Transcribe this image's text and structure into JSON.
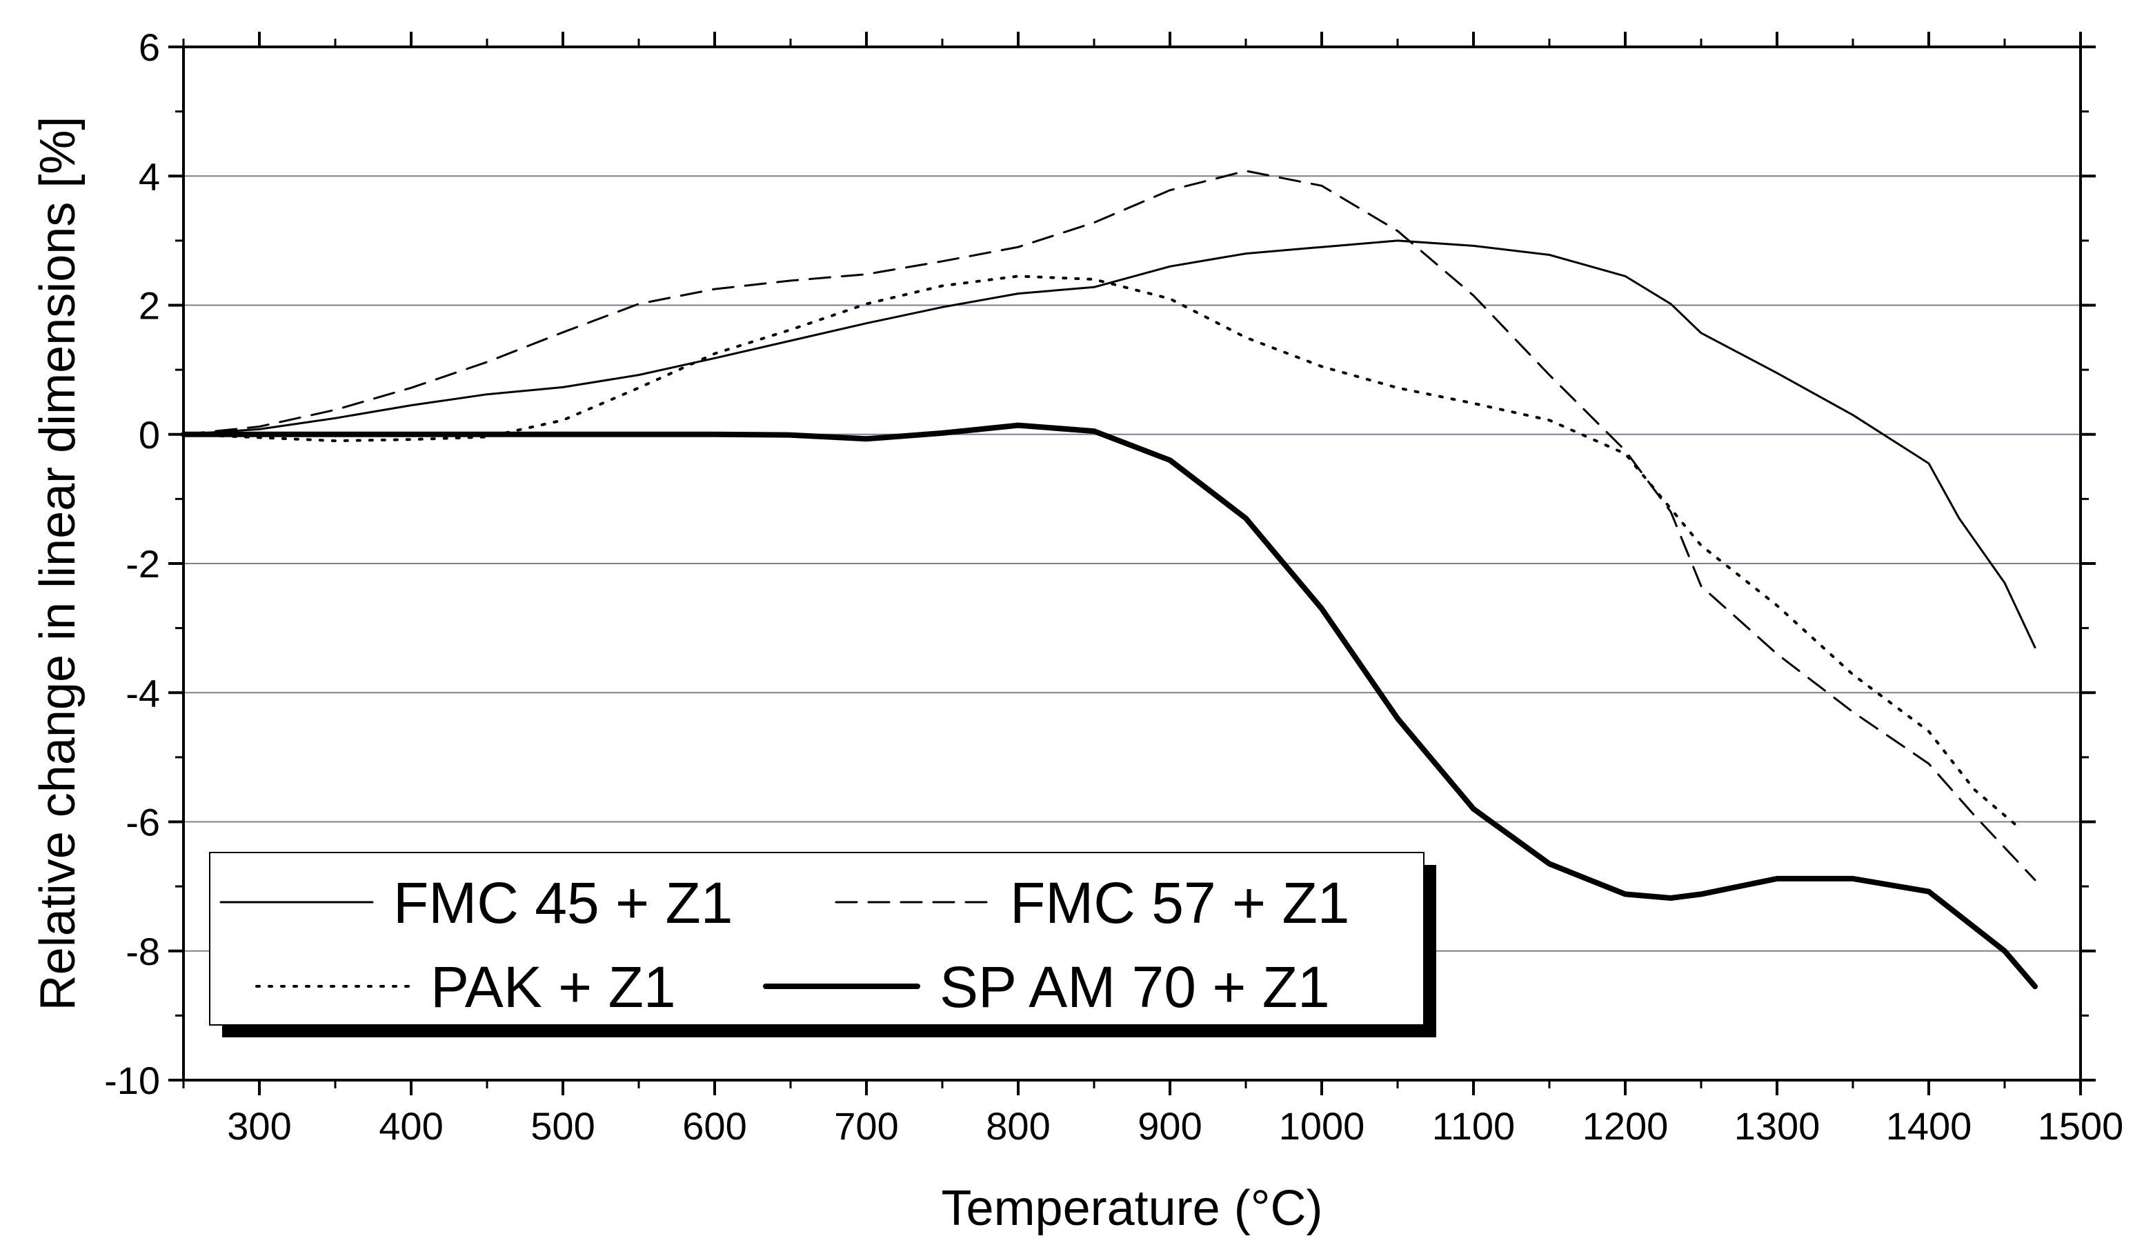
{
  "chart_data": {
    "type": "line",
    "title": "",
    "xlabel": "Temperature (°C)",
    "ylabel": "Relative change in linear dimensions [%]",
    "xlim": [
      250,
      1500
    ],
    "ylim": [
      -10,
      6
    ],
    "xticks": [
      300,
      400,
      500,
      600,
      700,
      800,
      900,
      1000,
      1100,
      1200,
      1300,
      1400,
      1500
    ],
    "yticks": [
      -10,
      -8,
      -6,
      -4,
      -2,
      0,
      2,
      4,
      6
    ],
    "grid": "horizontal",
    "legend_position": "bottom-left",
    "series": [
      {
        "name": "FMC 45 + Z1",
        "style": "thin-solid",
        "x": [
          250,
          300,
          350,
          400,
          450,
          500,
          550,
          600,
          650,
          700,
          750,
          800,
          850,
          900,
          950,
          1000,
          1050,
          1100,
          1150,
          1200,
          1230,
          1250,
          1300,
          1350,
          1400,
          1420,
          1450,
          1470
        ],
        "y": [
          0,
          0.08,
          0.25,
          0.45,
          0.62,
          0.73,
          0.92,
          1.18,
          1.45,
          1.72,
          1.97,
          2.18,
          2.28,
          2.6,
          2.8,
          2.9,
          3.0,
          2.92,
          2.78,
          2.45,
          2.02,
          1.57,
          0.95,
          0.3,
          -0.45,
          -1.3,
          -2.3,
          -3.3
        ]
      },
      {
        "name": "FMC 57 + Z1",
        "style": "dashed",
        "x": [
          250,
          300,
          350,
          400,
          450,
          500,
          550,
          600,
          650,
          700,
          750,
          800,
          850,
          900,
          950,
          1000,
          1050,
          1100,
          1150,
          1200,
          1230,
          1250,
          1300,
          1350,
          1400,
          1430,
          1470
        ],
        "y": [
          0,
          0.12,
          0.38,
          0.72,
          1.12,
          1.58,
          2.02,
          2.25,
          2.38,
          2.48,
          2.68,
          2.9,
          3.28,
          3.78,
          4.08,
          3.85,
          3.15,
          2.15,
          0.92,
          -0.25,
          -1.2,
          -2.35,
          -3.4,
          -4.3,
          -5.1,
          -5.9,
          -6.9
        ]
      },
      {
        "name": "PAK + Z1",
        "style": "dotted",
        "x": [
          250,
          300,
          350,
          400,
          450,
          500,
          550,
          600,
          650,
          700,
          750,
          800,
          850,
          900,
          950,
          1000,
          1050,
          1100,
          1150,
          1200,
          1250,
          1300,
          1350,
          1400,
          1430,
          1460
        ],
        "y": [
          0,
          -0.05,
          -0.1,
          -0.08,
          -0.04,
          0.22,
          0.72,
          1.25,
          1.62,
          2.02,
          2.3,
          2.45,
          2.4,
          2.1,
          1.5,
          1.05,
          0.72,
          0.48,
          0.22,
          -0.3,
          -1.72,
          -2.65,
          -3.72,
          -4.6,
          -5.5,
          -6.1
        ]
      },
      {
        "name": "SP AM 70 + Z1",
        "style": "thick-solid",
        "x": [
          250,
          300,
          400,
          500,
          600,
          650,
          700,
          750,
          800,
          850,
          900,
          950,
          1000,
          1050,
          1100,
          1150,
          1200,
          1230,
          1250,
          1300,
          1350,
          1400,
          1450,
          1470
        ],
        "y": [
          0,
          0,
          0,
          0,
          0,
          -0.01,
          -0.07,
          0.02,
          0.14,
          0.05,
          -0.4,
          -1.3,
          -2.7,
          -4.4,
          -5.8,
          -6.65,
          -7.12,
          -7.18,
          -7.12,
          -6.88,
          -6.88,
          -7.08,
          -8.0,
          -8.55
        ]
      }
    ]
  }
}
